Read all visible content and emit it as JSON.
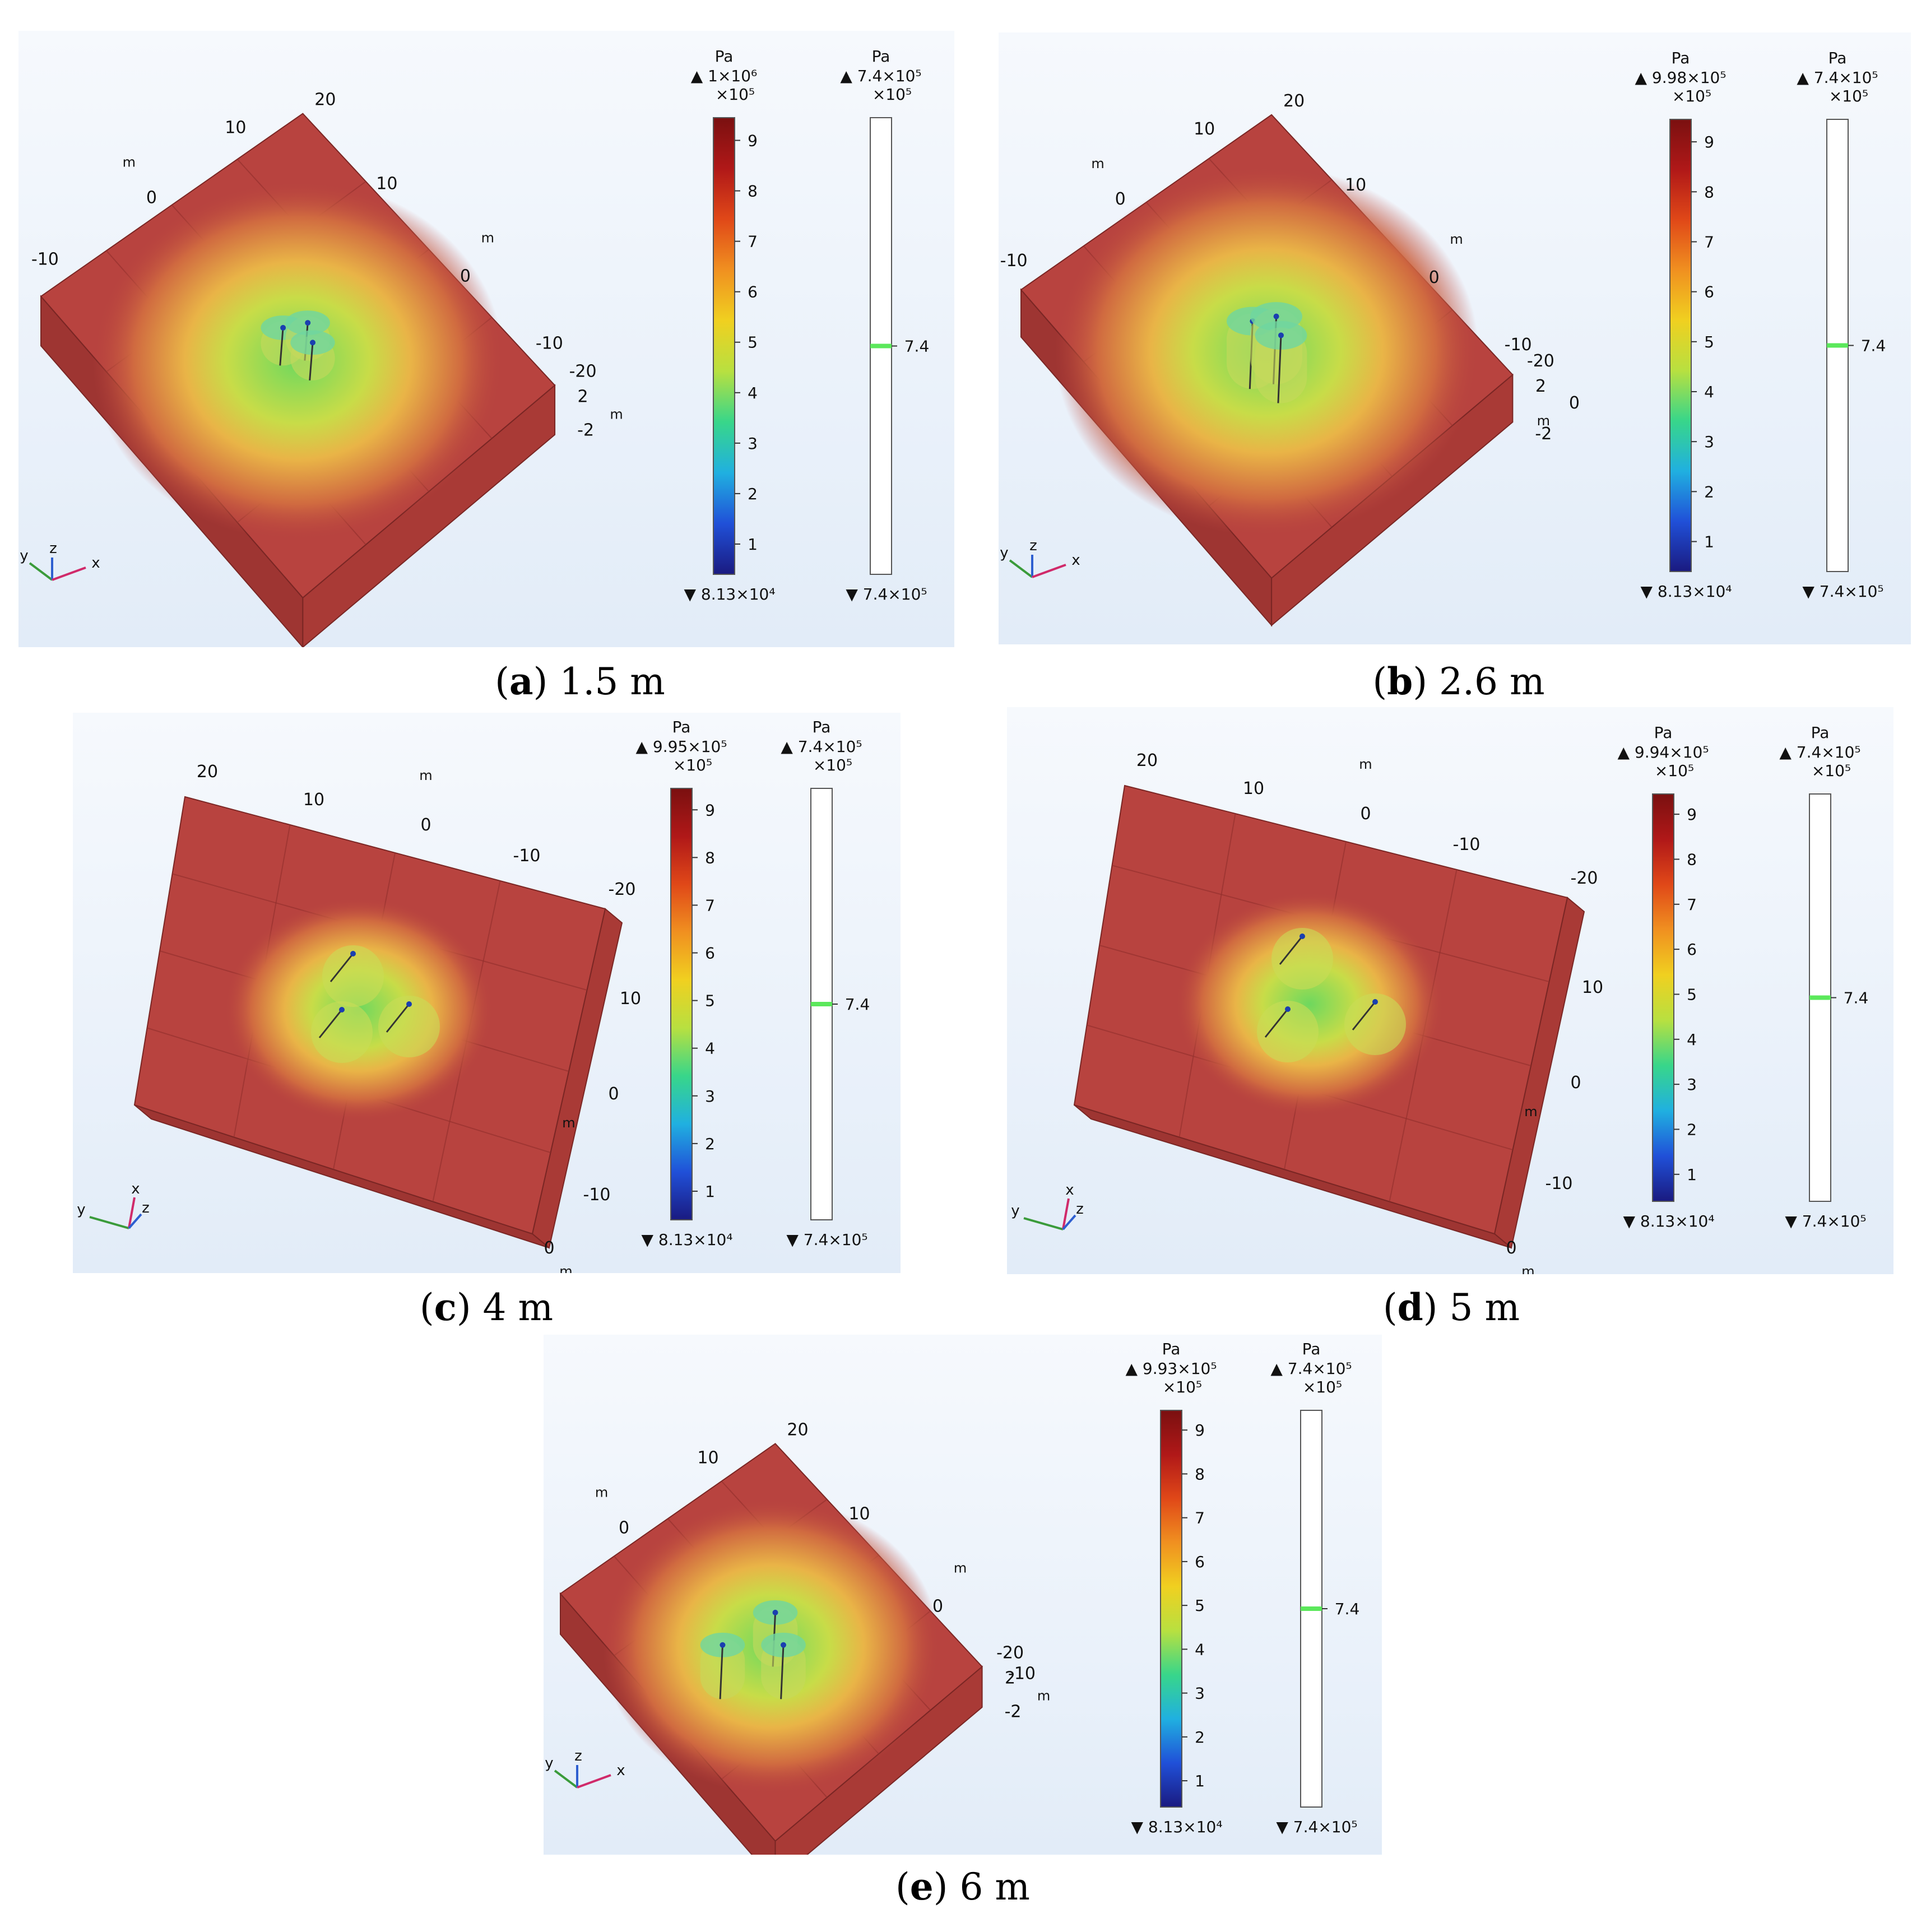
{
  "panels": [
    {
      "id": "a",
      "letter": "a",
      "caption": "1.5 m",
      "view": "iso",
      "unit": "Pa",
      "legend1": {
        "max_label": "1×10⁶",
        "exponent": "×10⁵",
        "ticks": [
          "9",
          "8",
          "7",
          "6",
          "5",
          "4",
          "3",
          "2",
          "1"
        ],
        "min_label": "8.13×10⁴"
      },
      "legend2": {
        "max_label": "7.4×10⁵",
        "exponent": "×10⁵",
        "marker_label": "7.4",
        "min_label": "7.4×10⁵"
      },
      "axis_labels": [
        "20",
        "10",
        "m",
        "0",
        "-10",
        "10",
        "m",
        "0",
        "-10",
        "-20",
        "2",
        "m",
        "-2"
      ],
      "triad": [
        "y",
        "z",
        "x"
      ]
    },
    {
      "id": "b",
      "letter": "b",
      "caption": "2.6 m",
      "view": "iso",
      "unit": "Pa",
      "legend1": {
        "max_label": "9.98×10⁵",
        "exponent": "×10⁵",
        "ticks": [
          "9",
          "8",
          "7",
          "6",
          "5",
          "4",
          "3",
          "2",
          "1"
        ],
        "min_label": "8.13×10⁴"
      },
      "legend2": {
        "max_label": "7.4×10⁵",
        "exponent": "×10⁵",
        "marker_label": "7.4",
        "min_label": "7.4×10⁵"
      },
      "axis_labels": [
        "20",
        "10",
        "m",
        "0",
        "-10",
        "10",
        "m",
        "0",
        "-10",
        "-20",
        "2",
        "0",
        "m",
        "-2"
      ],
      "triad": [
        "y",
        "z",
        "x"
      ]
    },
    {
      "id": "c",
      "letter": "c",
      "caption": "4 m",
      "view": "top",
      "unit": "Pa",
      "legend1": {
        "max_label": "9.95×10⁵",
        "exponent": "×10⁵",
        "ticks": [
          "9",
          "8",
          "7",
          "6",
          "5",
          "4",
          "3",
          "2",
          "1"
        ],
        "min_label": "8.13×10⁴"
      },
      "legend2": {
        "max_label": "7.4×10⁵",
        "exponent": "×10⁵",
        "marker_label": "7.4",
        "min_label": "7.4×10⁵"
      },
      "axis_labels": [
        "20",
        "10",
        "m",
        "0",
        "-10",
        "-20",
        "10",
        "0",
        "m",
        "-10",
        "0",
        "m"
      ],
      "triad": [
        "y",
        "x",
        "z"
      ]
    },
    {
      "id": "d",
      "letter": "d",
      "caption": "5 m",
      "view": "top",
      "unit": "Pa",
      "legend1": {
        "max_label": "9.94×10⁵",
        "exponent": "×10⁵",
        "ticks": [
          "9",
          "8",
          "7",
          "6",
          "5",
          "4",
          "3",
          "2",
          "1"
        ],
        "min_label": "8.13×10⁴"
      },
      "legend2": {
        "max_label": "7.4×10⁵",
        "exponent": "×10⁵",
        "marker_label": "7.4",
        "min_label": "7.4×10⁵"
      },
      "axis_labels": [
        "20",
        "10",
        "m",
        "0",
        "-10",
        "-20",
        "10",
        "0",
        "m",
        "-10",
        "0",
        "m"
      ],
      "triad": [
        "y",
        "x",
        "z"
      ]
    },
    {
      "id": "e",
      "letter": "e",
      "caption": "6 m",
      "view": "iso",
      "unit": "Pa",
      "legend1": {
        "max_label": "9.93×10⁵",
        "exponent": "×10⁵",
        "ticks": [
          "9",
          "8",
          "7",
          "6",
          "5",
          "4",
          "3",
          "2",
          "1"
        ],
        "min_label": "8.13×10⁴"
      },
      "legend2": {
        "max_label": "7.4×10⁵",
        "exponent": "×10⁵",
        "marker_label": "7.4",
        "min_label": "7.4×10⁵"
      },
      "axis_labels": [
        "20",
        "10",
        "m",
        "0",
        "-10",
        "10",
        "m",
        "0",
        "-10",
        "-20",
        "2",
        "m",
        "-2"
      ],
      "triad": [
        "y",
        "z",
        "x"
      ]
    }
  ],
  "colors": {
    "block_face": "#b8433f",
    "block_edge": "#7a2624",
    "hot_center": "#7fd35a",
    "ring": "#e8d43a",
    "colormap": [
      "#1a1a80",
      "#2050d8",
      "#20b0e0",
      "#38d68a",
      "#b8e040",
      "#f0d020",
      "#f09020",
      "#e04818",
      "#b01818",
      "#7a1010"
    ],
    "marker": "#5be85b"
  }
}
